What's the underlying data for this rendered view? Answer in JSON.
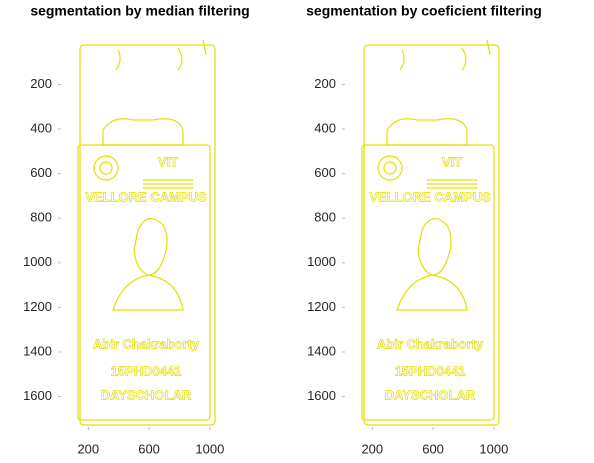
{
  "chart_data": [
    {
      "type": "image",
      "title": "segmentation by median filtering",
      "xlim": [
        0.5,
        1080
      ],
      "xticks": [
        200,
        600,
        1000
      ],
      "ylim": [
        0.5,
        1750
      ],
      "yticks": [
        200,
        400,
        600,
        800,
        1000,
        1200,
        1400,
        1600
      ],
      "y_reversed": true,
      "color": "#e3e000",
      "annotations": [
        "VIT",
        "VELLORE CAMPUS",
        "Abir Chakraborty",
        "15PHD0441",
        "DAYSCHOLAR"
      ]
    },
    {
      "type": "image",
      "title": "segmentation by coeficient filtering",
      "xlim": [
        0.5,
        1080
      ],
      "xticks": [
        200,
        600,
        1000
      ],
      "ylim": [
        0.5,
        1750
      ],
      "yticks": [
        200,
        400,
        600,
        800,
        1000,
        1200,
        1400,
        1600
      ],
      "y_reversed": true,
      "color": "#e3e000",
      "annotations": [
        "VIT",
        "VELLORE CAMPUS",
        "Abir Chakraborty",
        "15PHD0441",
        "DAYSCHOLAR"
      ]
    }
  ]
}
